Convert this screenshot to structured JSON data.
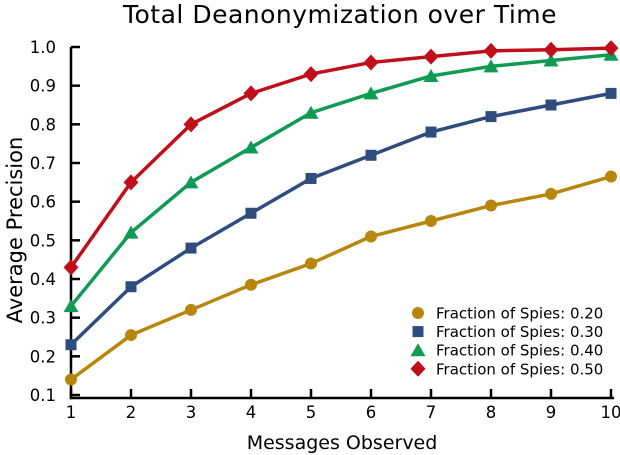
{
  "chart_data": {
    "type": "line",
    "title": "Total Deanonymization over Time",
    "xlabel": "Messages Observed",
    "ylabel": "Average Precision",
    "x": [
      1,
      2,
      3,
      4,
      5,
      6,
      7,
      8,
      9,
      10
    ],
    "xlim": [
      1,
      10
    ],
    "ylim": [
      0.1,
      1.0
    ],
    "xticks": [
      "1",
      "2",
      "3",
      "4",
      "5",
      "6",
      "7",
      "8",
      "9",
      "10"
    ],
    "yticks": [
      "0.1",
      "0.2",
      "0.3",
      "0.4",
      "0.5",
      "0.6",
      "0.7",
      "0.8",
      "0.9",
      "1.0"
    ],
    "grid": false,
    "legend_position": "lower right",
    "background_color": "#ffffff",
    "axis_color": "#000000",
    "series": [
      {
        "name": "Fraction of Spies: 0.20",
        "marker": "circle",
        "color": "#B8860B",
        "values": [
          0.14,
          0.255,
          0.32,
          0.385,
          0.44,
          0.51,
          0.55,
          0.59,
          0.62,
          0.665
        ]
      },
      {
        "name": "Fraction of Spies: 0.30",
        "marker": "square",
        "color": "#2E4D7E",
        "values": [
          0.23,
          0.38,
          0.48,
          0.57,
          0.66,
          0.72,
          0.78,
          0.82,
          0.85,
          0.88
        ]
      },
      {
        "name": "Fraction of Spies: 0.40",
        "marker": "triangle",
        "color": "#0F9B53",
        "values": [
          0.33,
          0.52,
          0.65,
          0.74,
          0.83,
          0.88,
          0.925,
          0.95,
          0.965,
          0.98
        ]
      },
      {
        "name": "Fraction of Spies: 0.50",
        "marker": "diamond",
        "color": "#C00E1A",
        "values": [
          0.43,
          0.65,
          0.8,
          0.88,
          0.93,
          0.96,
          0.975,
          0.99,
          0.993,
          0.997
        ]
      }
    ]
  }
}
